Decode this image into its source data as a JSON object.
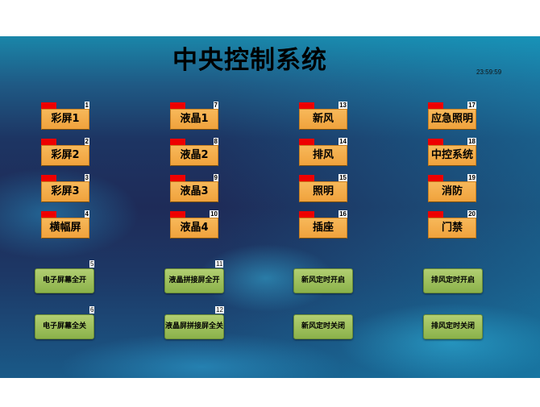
{
  "header": {
    "title": "中央控制系统",
    "clock": "23:59:59"
  },
  "device_buttons": [
    [
      {
        "label": "彩屏1",
        "num": "1"
      },
      {
        "label": "彩屏2",
        "num": "2"
      },
      {
        "label": "彩屏3",
        "num": "3"
      },
      {
        "label": "横幅屏",
        "num": "4"
      }
    ],
    [
      {
        "label": "液晶1",
        "num": "7"
      },
      {
        "label": "液晶2",
        "num": "8"
      },
      {
        "label": "液晶3",
        "num": "9"
      },
      {
        "label": "液晶4",
        "num": "10"
      }
    ],
    [
      {
        "label": "新风",
        "num": "13"
      },
      {
        "label": "排风",
        "num": "14"
      },
      {
        "label": "照明",
        "num": "15"
      },
      {
        "label": "插座",
        "num": "16"
      }
    ],
    [
      {
        "label": "应急照明",
        "num": "17"
      },
      {
        "label": "中控系统",
        "num": "18"
      },
      {
        "label": "消防",
        "num": "19"
      },
      {
        "label": "门禁",
        "num": "20"
      }
    ]
  ],
  "action_buttons": [
    [
      {
        "label": "电子屏幕全开",
        "num": "5"
      },
      {
        "label": "电子屏幕全关",
        "num": "6"
      }
    ],
    [
      {
        "label": "液晶拼接屏全开",
        "num": "11"
      },
      {
        "label": "液晶屏拼接屏全关",
        "num": "12"
      }
    ],
    [
      {
        "label": "新风定时开启",
        "num": ""
      },
      {
        "label": "新风定时关闭",
        "num": ""
      }
    ],
    [
      {
        "label": "排风定时开启",
        "num": ""
      },
      {
        "label": "排风定时关闭",
        "num": ""
      }
    ]
  ],
  "colors": {
    "device_button": "#f4ad4c",
    "status_tab": "#ee0000",
    "action_button": "#9fc05e"
  }
}
